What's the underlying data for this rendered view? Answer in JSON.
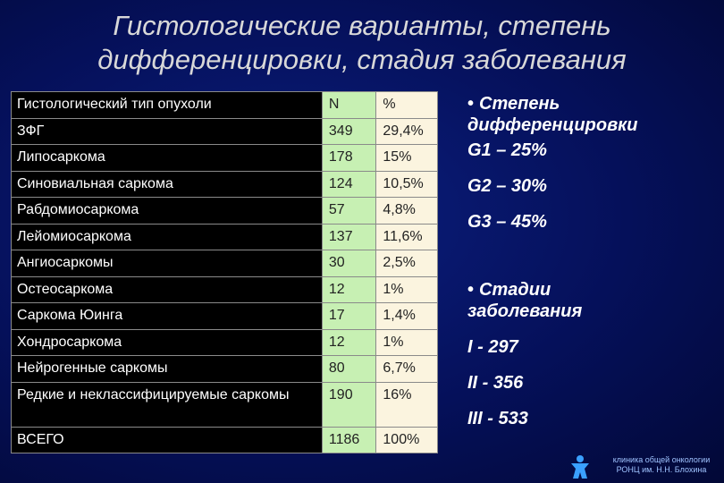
{
  "title_line1": "Гистологические варианты, степень",
  "title_line2": "дифференцировки, стадия заболевания",
  "table": {
    "header": {
      "name": "Гистологический тип опухоли",
      "n": "N",
      "p": "%"
    },
    "rows": [
      {
        "name": "ЗФГ",
        "n": "349",
        "p": "29,4%"
      },
      {
        "name": "Липосаркома",
        "n": "178",
        "p": "15%"
      },
      {
        "name": "Синовиальная саркома",
        "n": "124",
        "p": "10,5%"
      },
      {
        "name": "Рабдомиосаркома",
        "n": "57",
        "p": "4,8%"
      },
      {
        "name": "Лейомиосаркома",
        "n": "137",
        "p": "11,6%"
      },
      {
        "name": "Ангиосаркомы",
        "n": "30",
        "p": "2,5%"
      },
      {
        "name": "Остеосаркома",
        "n": "12",
        "p": "1%"
      },
      {
        "name": "Саркома Юинга",
        "n": "17",
        "p": "1,4%"
      },
      {
        "name": "Хондросаркома",
        "n": "12",
        "p": "1%"
      },
      {
        "name": "Нейрогенные саркомы",
        "n": "80",
        "p": "6,7%"
      },
      {
        "name": "Редкие и неклассифицируемые саркомы",
        "n": "190",
        "p": "16%"
      }
    ],
    "total": {
      "name": "ВСЕГО",
      "n": "1186",
      "p": "100%"
    }
  },
  "side": {
    "diff_head1": "Степень",
    "diff_head2": "дифференцировки",
    "g1": "G1 – 25%",
    "g2": "G2 – 30%",
    "g3": "G3 – 45%",
    "stage_head1": "Стадии",
    "stage_head2": "заболевания",
    "s1": "I - 297",
    "s2": "II - 356",
    "s3": "III - 533"
  },
  "footer": {
    "line1": "клиника общей онкологии",
    "line2": "РОНЦ им. Н.Н. Блохина"
  }
}
